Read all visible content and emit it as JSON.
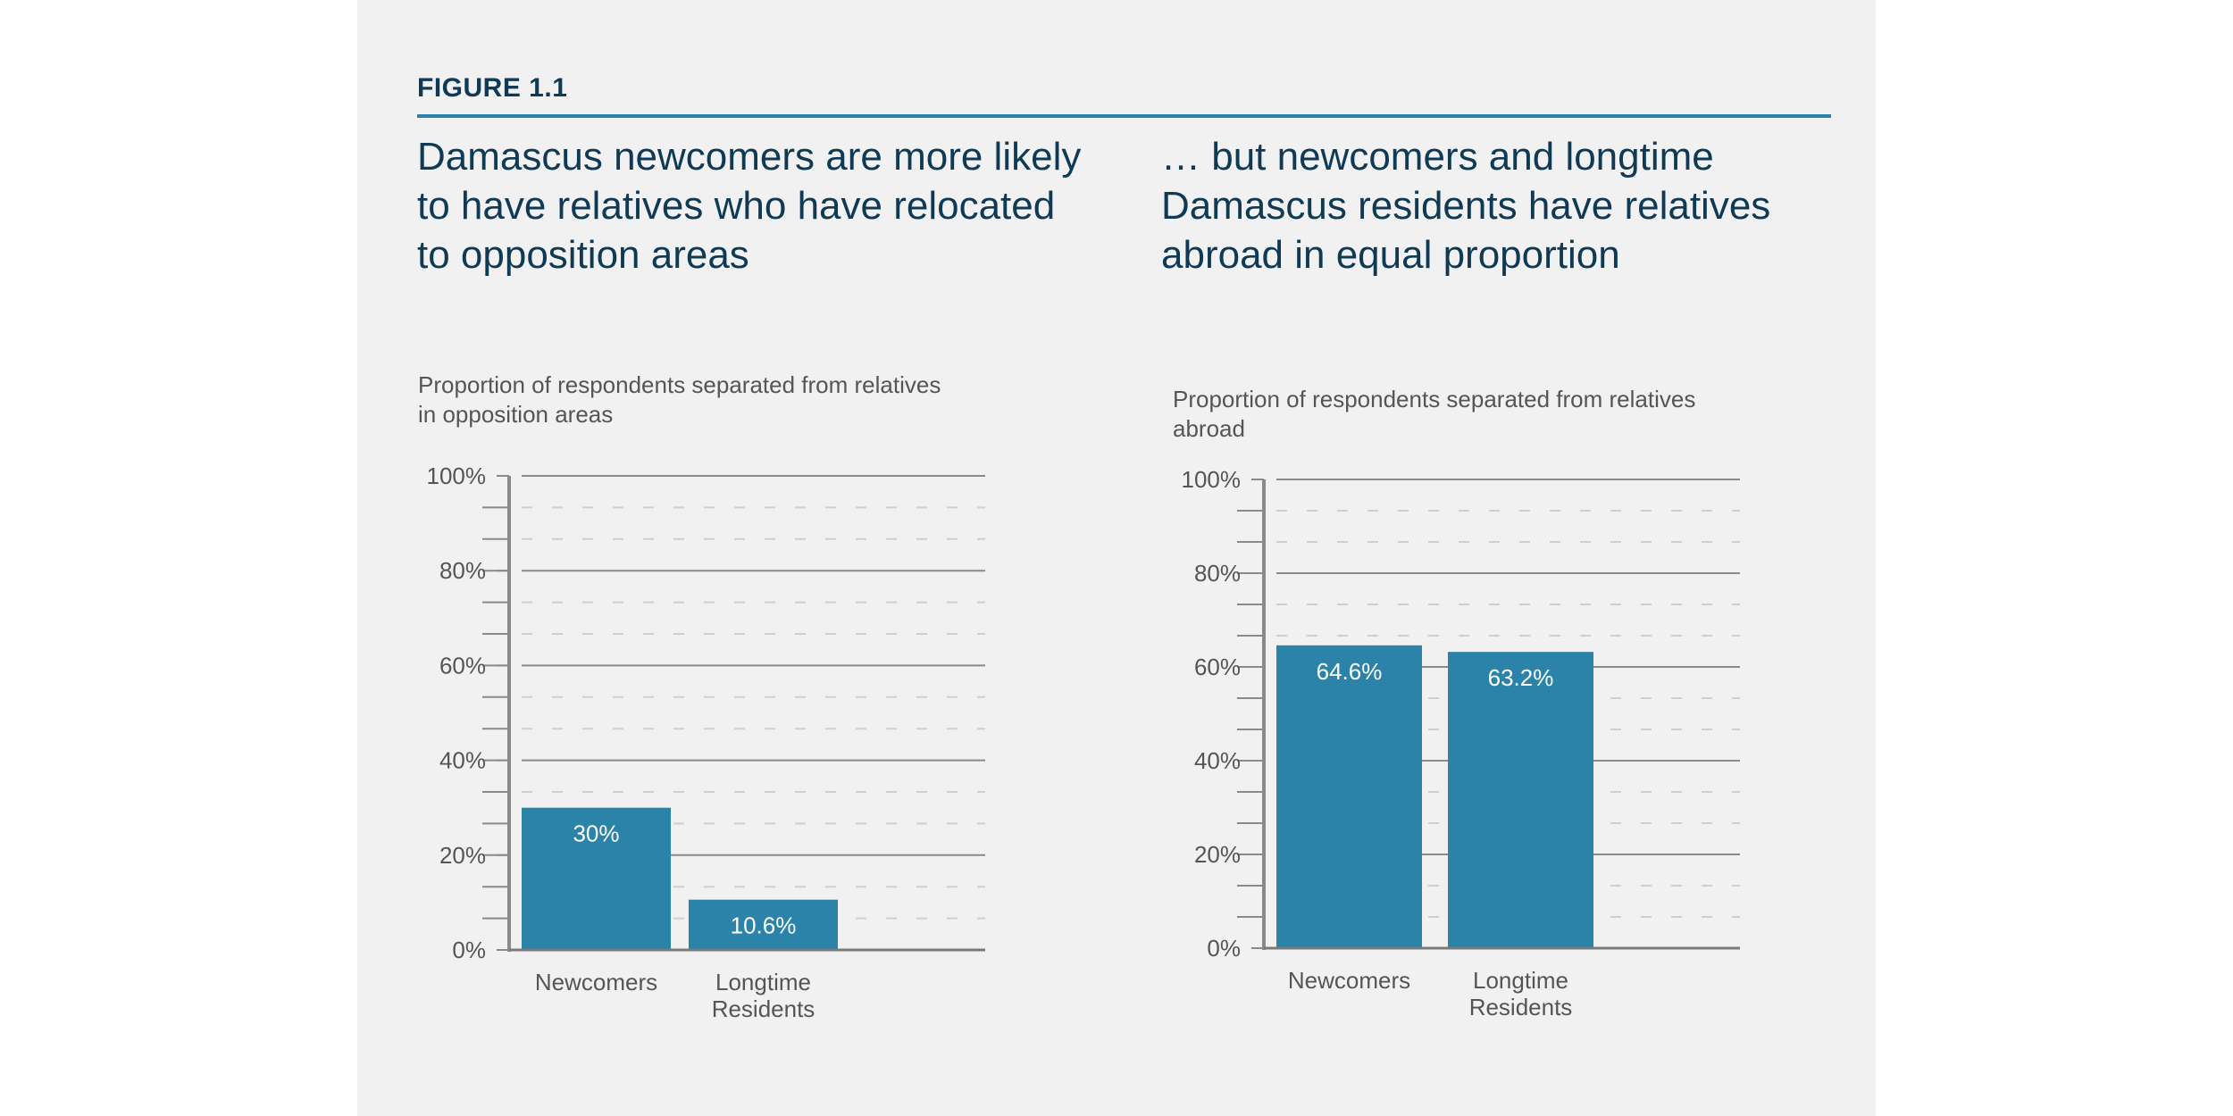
{
  "figure": {
    "label": "FIGURE 1.1",
    "colors": {
      "bar": "#2b83a9",
      "heading": "#0f3a56",
      "rule": "#2b83a9",
      "background": "#f1f1f1"
    }
  },
  "chart_data": [
    {
      "type": "bar",
      "title": "Damascus newcomers are more likely to have relatives who have relocated to opposition areas",
      "subtitle": "Proportion of respondents separated from relatives in opposition areas",
      "categories": [
        "Newcomers",
        "Longtime Residents"
      ],
      "values": [
        30,
        10.6
      ],
      "value_labels": [
        "30%",
        "10.6%"
      ],
      "ylim": [
        0,
        100
      ],
      "yticks": [
        "0%",
        "20%",
        "40%",
        "60%",
        "80%",
        "100%"
      ],
      "grid": true,
      "color": "#2b83a9"
    },
    {
      "type": "bar",
      "title": "… but newcomers and longtime Damascus residents have relatives abroad in equal proportion",
      "subtitle": "Proportion of respondents separated from relatives abroad",
      "categories": [
        "Newcomers",
        "Longtime Residents"
      ],
      "values": [
        64.6,
        63.2
      ],
      "value_labels": [
        "64.6%",
        "63.2%"
      ],
      "ylim": [
        0,
        100
      ],
      "yticks": [
        "0%",
        "20%",
        "40%",
        "60%",
        "80%",
        "100%"
      ],
      "grid": true,
      "color": "#2b83a9"
    }
  ]
}
